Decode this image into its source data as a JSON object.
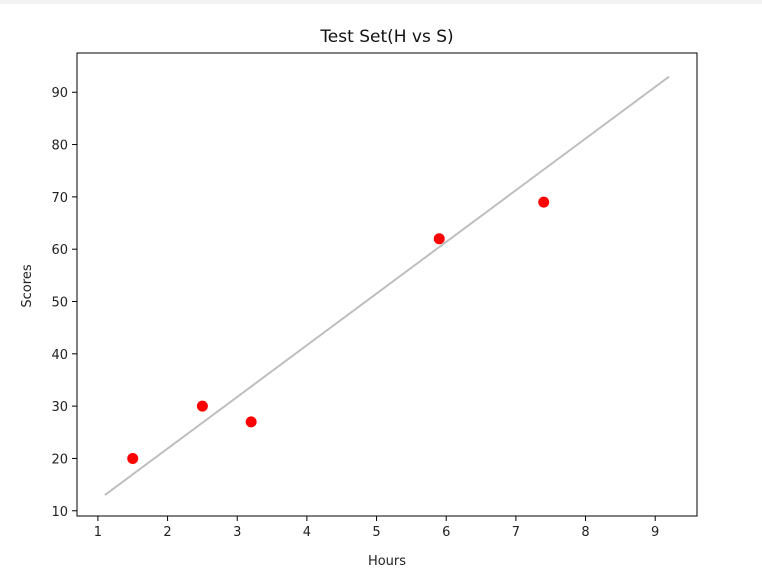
{
  "chart_data": {
    "type": "scatter",
    "title": "Test Set(H vs S)",
    "xlabel": "Hours",
    "ylabel": "Scores",
    "xlim": [
      0.7,
      9.6
    ],
    "ylim": [
      9,
      97.5
    ],
    "xticks": [
      1,
      2,
      3,
      4,
      5,
      6,
      7,
      8,
      9
    ],
    "yticks": [
      10,
      20,
      30,
      40,
      50,
      60,
      70,
      80,
      90
    ],
    "grid": false,
    "series": [
      {
        "type": "scatter",
        "color": "#ff0000",
        "points": [
          {
            "x": 1.5,
            "y": 20
          },
          {
            "x": 2.5,
            "y": 30
          },
          {
            "x": 3.2,
            "y": 27
          },
          {
            "x": 5.9,
            "y": 62
          },
          {
            "x": 7.4,
            "y": 69
          }
        ]
      },
      {
        "type": "line",
        "color": "#bfbfbf",
        "points": [
          {
            "x": 1.1,
            "y": 13
          },
          {
            "x": 9.2,
            "y": 93
          }
        ]
      }
    ]
  }
}
